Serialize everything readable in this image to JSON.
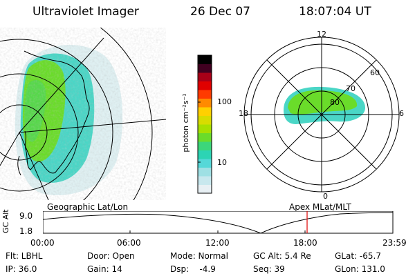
{
  "header": {
    "title": "Ultraviolet Imager",
    "date": "26 Dec 07",
    "time": "18:07:04 UT"
  },
  "colorbar": {
    "unit_label": "photon cm⁻²s⁻¹",
    "tick_100": "100",
    "tick_10": "10",
    "scale": "log",
    "colors": [
      "#e8f0f4",
      "#c8e8ee",
      "#9fe0e4",
      "#55d8d8",
      "#2cd4b4",
      "#3cd67a",
      "#6adc2a",
      "#a8e000",
      "#d8dc00",
      "#ffd000",
      "#ff8a00",
      "#ff3a00",
      "#e00000",
      "#a80018",
      "#400020",
      "#000000"
    ]
  },
  "polar_plot": {
    "lat_labels": [
      "60",
      "70",
      "80"
    ],
    "mlt_labels": {
      "top": "12",
      "right": "6",
      "bottom": "0",
      "left": "18"
    }
  },
  "timeline": {
    "left_label": "Geographic Lat/Lon",
    "right_label": "Apex MLat/MLT",
    "y_axis_label": "GC Alt",
    "y_ticks": [
      "9.0",
      "1.8"
    ],
    "x_ticks": [
      "00:00",
      "06:00",
      "12:00",
      "18:00",
      "23:59"
    ],
    "marker_color": "#e00000"
  },
  "status": {
    "flt": "Flt: LBHL",
    "ip": "IP: 36.0",
    "door": "Door: Open",
    "gain": "Gain: 14",
    "mode": "Mode: Normal",
    "dsp": "Dsp:    -4.9",
    "gcalt": "GC Alt: 5.4 Re",
    "seq": "Seq: 39",
    "glat": "GLat: -65.7",
    "glon": "GLon: 131.0"
  }
}
